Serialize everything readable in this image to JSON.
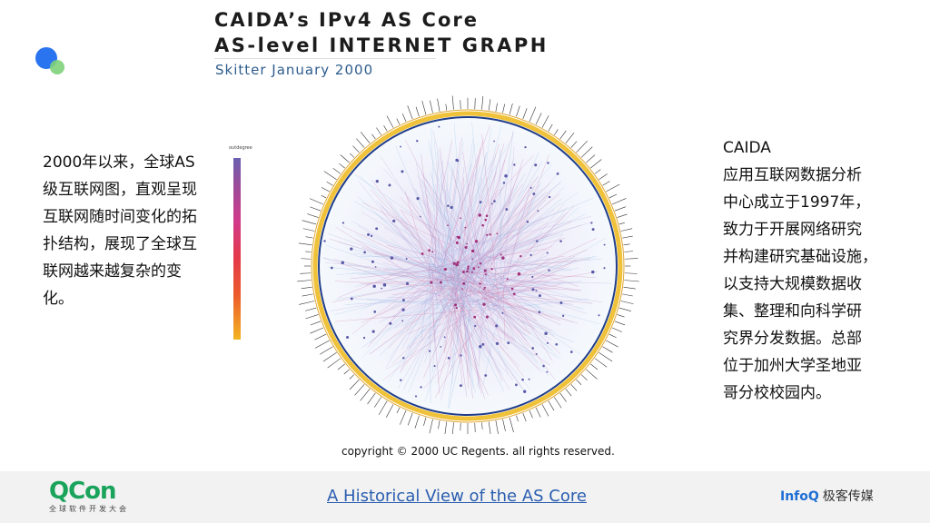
{
  "slide": {
    "title_line1": "CAIDA’s IPv4 AS Core",
    "title_line2": "AS-level INTERNET GRAPH",
    "subtitle": "Skitter January 2000",
    "left_text": "2000年以来，全球AS级互联网图，直观呈现互联网随时间变化的拓扑结构，展现了全球互联网越来越复杂的变化。",
    "right_lines": [
      "CAIDA",
      "应用互联网数据分析",
      "中心成立于1997年，",
      "致力于开展网络研究",
      "并构建研究基础设施，",
      "以支持大规模数据收",
      "集、整理和向科学研",
      "究界分发数据。总部",
      "位于加州大学圣地亚",
      "哥分校校园内。"
    ],
    "copyright": "copyright © 2000 UC Regents. all rights reserved."
  },
  "legend": {
    "caption": "outdegree"
  },
  "footer": {
    "logo_main": "QCon",
    "logo_sub": "全球软件开发大会",
    "link_text": "A Historical View of the AS Core",
    "brand": "InfoQ",
    "brand_cn": "极客传媒"
  },
  "colors": {
    "accent_blue": "#2b74f0",
    "accent_green": "#7ed27a",
    "qcon_green": "#19a35b",
    "link_blue": "#2a5db0",
    "footer_bg": "#f2f2f2"
  }
}
